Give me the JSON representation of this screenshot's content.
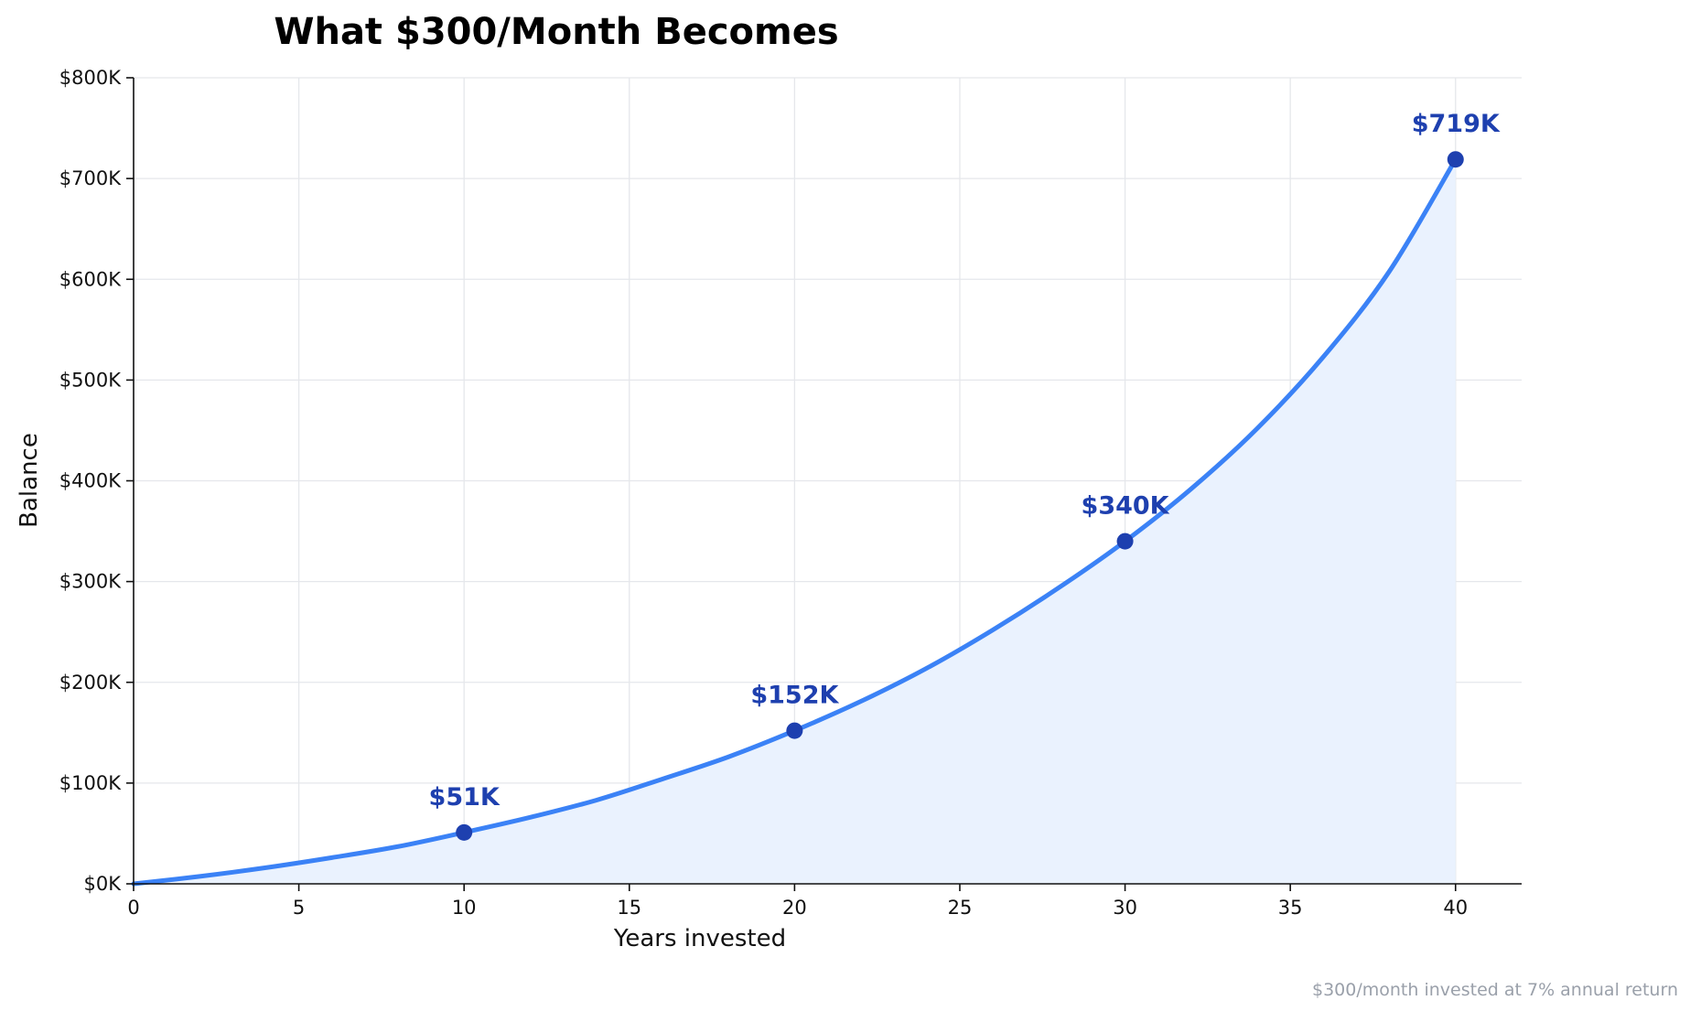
{
  "chart_data": {
    "type": "line",
    "title": "What $300/Month Becomes",
    "xlabel": "Years invested",
    "ylabel": "Balance",
    "footnote": "$300/month invested at 7% annual return",
    "xlim": [
      0,
      42
    ],
    "ylim": [
      0,
      800000
    ],
    "x_ticks": [
      0,
      5,
      10,
      15,
      20,
      25,
      30,
      35,
      40
    ],
    "y_ticks": [
      0,
      100000,
      200000,
      300000,
      400000,
      500000,
      600000,
      700000,
      800000
    ],
    "y_tick_labels": [
      "$0K",
      "$100K",
      "$200K",
      "$300K",
      "$400K",
      "$500K",
      "$600K",
      "$700K",
      "$800K"
    ],
    "grid": true,
    "series": [
      {
        "x": [
          0,
          2,
          4,
          6,
          8,
          10,
          12,
          14,
          16,
          18,
          20,
          22,
          24,
          26,
          28,
          30,
          32,
          34,
          36,
          38,
          40
        ],
        "y": [
          0,
          7400,
          16000,
          26000,
          37000,
          51000,
          66000,
          83000,
          104000,
          126000,
          152000,
          181000,
          214000,
          252000,
          294000,
          340000,
          392000,
          452000,
          523000,
          608000,
          719000
        ],
        "color": "#3b82f6",
        "fill": "#eaf2fe"
      }
    ],
    "markers": [
      {
        "x": 10,
        "y": 51000,
        "label": "$51K"
      },
      {
        "x": 20,
        "y": 152000,
        "label": "$152K"
      },
      {
        "x": 30,
        "y": 340000,
        "label": "$340K"
      },
      {
        "x": 40,
        "y": 719000,
        "label": "$719K"
      }
    ],
    "marker_color": "#1e40af"
  }
}
